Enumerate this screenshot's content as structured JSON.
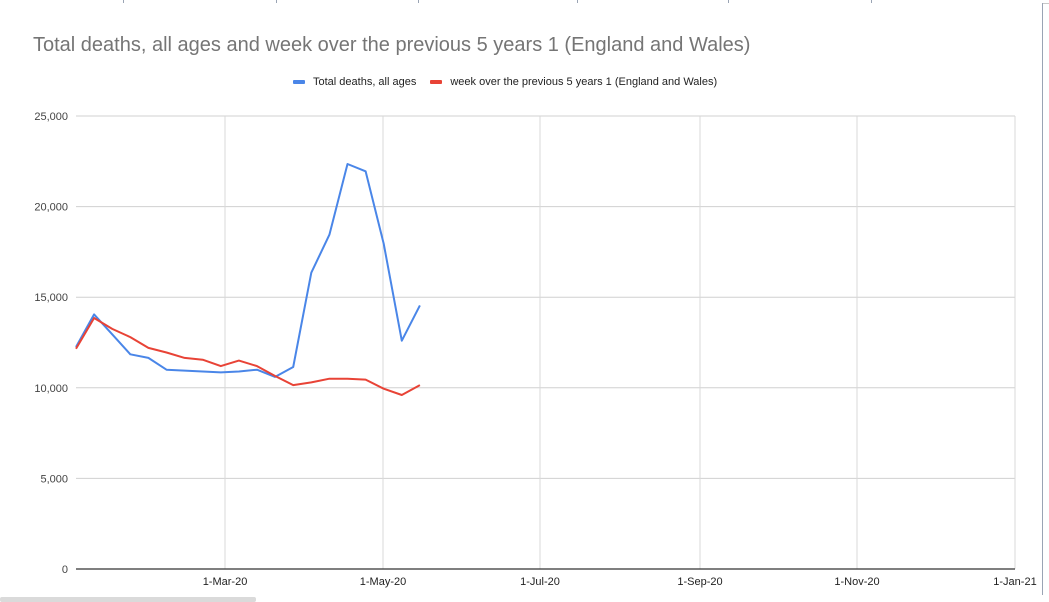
{
  "chart_data": {
    "type": "line",
    "title": "Total deaths, all ages and week over the previous 5 years 1 (England and Wales)",
    "xlabel": "",
    "ylabel": "",
    "ylim": [
      0,
      25000
    ],
    "yticks": [
      "0",
      "5,000",
      "10,000",
      "15,000",
      "20,000",
      "25,000"
    ],
    "xticks": [
      "1-Mar-20",
      "1-May-20",
      "1-Jul-20",
      "1-Sep-20",
      "1-Nov-20",
      "1-Jan-21"
    ],
    "grid": true,
    "legend_position": "top",
    "x": [
      "3-Jan-20",
      "10-Jan-20",
      "17-Jan-20",
      "24-Jan-20",
      "31-Jan-20",
      "7-Feb-20",
      "14-Feb-20",
      "21-Feb-20",
      "28-Feb-20",
      "6-Mar-20",
      "13-Mar-20",
      "20-Mar-20",
      "27-Mar-20",
      "3-Apr-20",
      "10-Apr-20",
      "17-Apr-20",
      "24-Apr-20",
      "1-May-20",
      "8-May-20",
      "15-May-20"
    ],
    "series": [
      {
        "name": "Total deaths, all ages",
        "color": "#4a86e8",
        "values": [
          12250,
          14050,
          12950,
          11850,
          11650,
          11000,
          10950,
          10900,
          10850,
          10900,
          11000,
          10600,
          11150,
          16350,
          18450,
          22350,
          21950,
          17950,
          12600,
          14550
        ]
      },
      {
        "name": "week over the previous 5 years 1 (England and Wales)",
        "color": "#e84336",
        "values": [
          12150,
          13850,
          13250,
          12800,
          12200,
          11950,
          11650,
          11550,
          11200,
          11500,
          11200,
          10650,
          10150,
          10300,
          10500,
          10500,
          10450,
          9950,
          9600,
          10150
        ]
      }
    ]
  },
  "legend": {
    "items": [
      {
        "label": "Total deaths, all ages",
        "color": "#4a86e8"
      },
      {
        "label": "week over the previous 5 years 1 (England and Wales)",
        "color": "#e84336"
      }
    ]
  }
}
